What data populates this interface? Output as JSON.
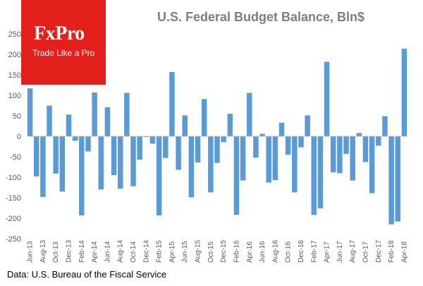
{
  "brand": {
    "name": "FxPro",
    "tagline": "Trade Like a Pro",
    "color": "#e3201b"
  },
  "source_text": "Data: U.S. Bureau of the Fiscal Service",
  "chart_data": {
    "type": "bar",
    "title": "U.S. Federal Budget Balance, Bln$",
    "xlabel": "",
    "ylabel": "",
    "ylim": [
      -250,
      250
    ],
    "yticks": [
      250,
      200,
      150,
      100,
      50,
      0,
      -50,
      -100,
      -150,
      -200,
      -250
    ],
    "grid": false,
    "bar_color": "#5b9bd5",
    "categories": [
      "Jun-13",
      "Jul-13",
      "Aug-13",
      "Sep-13",
      "Oct-13",
      "Nov-13",
      "Dec-13",
      "Jan-14",
      "Feb-14",
      "Mar-14",
      "Apr-14",
      "May-14",
      "Jun-14",
      "Jul-14",
      "Aug-14",
      "Sep-14",
      "Oct-14",
      "Nov-14",
      "Dec-14",
      "Jan-15",
      "Feb-15",
      "Mar-15",
      "Apr-15",
      "May-15",
      "Jun-15",
      "Jul-15",
      "Aug-15",
      "Sep-15",
      "Oct-15",
      "Nov-15",
      "Dec-15",
      "Jan-16",
      "Feb-16",
      "Mar-16",
      "Apr-16",
      "May-16",
      "Jun-16",
      "Jul-16",
      "Aug-16",
      "Sep-16",
      "Oct-16",
      "Nov-16",
      "Dec-16",
      "Jan-17",
      "Feb-17",
      "Mar-17",
      "Apr-17",
      "May-17",
      "Jun-17",
      "Jul-17",
      "Aug-17",
      "Sep-17",
      "Oct-17",
      "Nov-17",
      "Dec-17",
      "Jan-18",
      "Feb-18",
      "Mar-18",
      "Apr-18"
    ],
    "tick_labels": [
      "Jun-13",
      "Aug-13",
      "Oct-13",
      "Dec-13",
      "Feb-14",
      "Apr-14",
      "Jun-14",
      "Aug-14",
      "Oct-14",
      "Dec-14",
      "Feb-15",
      "Apr-15",
      "Jun-15",
      "Aug-15",
      "Oct-15",
      "Dec-15",
      "Feb-16",
      "Apr-16",
      "Jun-16",
      "Aug-16",
      "Oct-16",
      "Dec-16",
      "Feb-17",
      "Apr-17",
      "Jun-17",
      "Aug-17",
      "Oct-17",
      "Dec-17",
      "Feb-18",
      "Apr-18"
    ],
    "values": [
      117,
      -98,
      -148,
      75,
      -91,
      -135,
      53,
      -11,
      -193,
      -37,
      107,
      -130,
      71,
      -95,
      -128,
      106,
      -122,
      -57,
      -2,
      -18,
      -193,
      -53,
      157,
      -82,
      51,
      -149,
      -64,
      91,
      -137,
      -65,
      -14,
      55,
      -192,
      -108,
      106,
      -52,
      6,
      -113,
      -107,
      33,
      -45,
      -137,
      -27,
      51,
      -192,
      -176,
      182,
      -88,
      -90,
      -43,
      -108,
      8,
      -63,
      -139,
      -23,
      49,
      -215,
      -208,
      214
    ]
  }
}
